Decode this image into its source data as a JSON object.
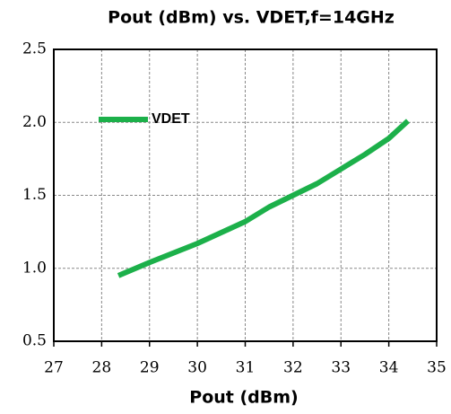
{
  "chart_data": {
    "type": "line",
    "title": "Pout (dBm) vs. VDET,f=14GHz",
    "x_label": "Pout (dBm)",
    "x": [
      28.35,
      29,
      30,
      31,
      31.5,
      32,
      32.5,
      33,
      33.5,
      34,
      34.4
    ],
    "series": [
      {
        "name": "VDET",
        "color": "#1cb04a",
        "values": [
          0.95,
          1.04,
          1.17,
          1.32,
          1.42,
          1.5,
          1.58,
          1.68,
          1.78,
          1.89,
          2.01
        ]
      }
    ],
    "xlim": [
      27,
      35
    ],
    "xticks": [
      27,
      28,
      29,
      30,
      31,
      32,
      33,
      34,
      35
    ],
    "ylim": [
      0.5,
      2.5
    ],
    "yticks": [
      0.5,
      {
        "value": 1,
        "label": "1.0"
      },
      1.5,
      {
        "value": 2,
        "label": "2.0"
      },
      2.5
    ],
    "grid": true,
    "legend": "upper left"
  }
}
